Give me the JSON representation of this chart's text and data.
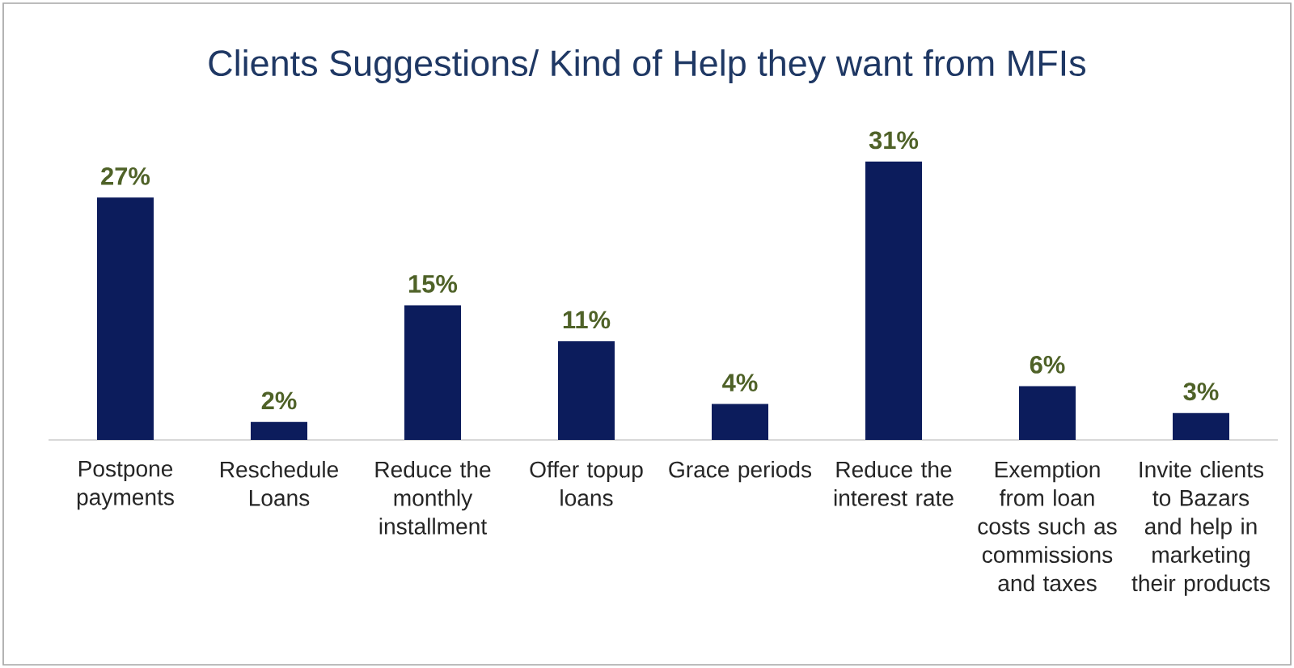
{
  "chart_data": {
    "type": "bar",
    "title": "Clients Suggestions/ Kind of Help they want from MFIs",
    "categories": [
      "Postpone payments",
      "Reschedule Loans",
      "Reduce the monthly installment",
      "Offer topup loans",
      "Grace periods",
      "Reduce the interest rate",
      "Exemption from loan costs such as commissions and taxes",
      "Invite clients to Bazars and help in marketing their products"
    ],
    "values": [
      27,
      2,
      15,
      11,
      4,
      31,
      6,
      3
    ],
    "value_labels": [
      "27%",
      "2%",
      "15%",
      "11%",
      "4%",
      "31%",
      "6%",
      "3%"
    ],
    "color": "#0c1c5c"
  }
}
